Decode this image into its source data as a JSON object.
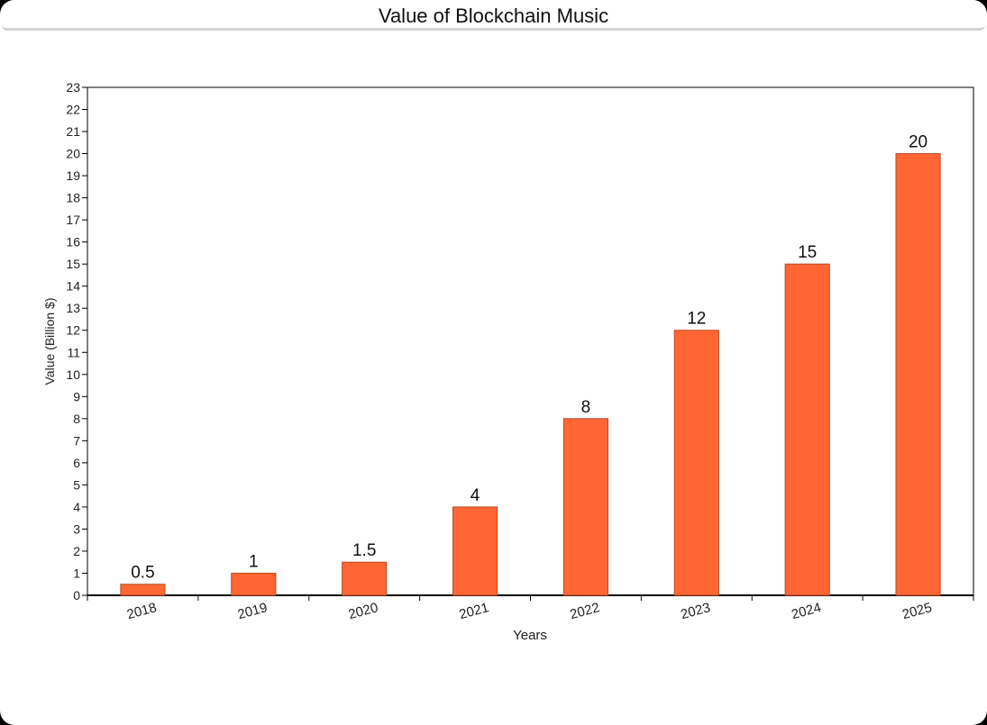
{
  "window": {
    "title": "Value of Blockchain Music"
  },
  "chart_data": {
    "type": "bar",
    "title": "Value of Blockchain Music",
    "xlabel": "Years",
    "ylabel": "Value (Billion $)",
    "categories": [
      "2018",
      "2019",
      "2020",
      "2021",
      "2022",
      "2023",
      "2024",
      "2025"
    ],
    "values": [
      0.5,
      1,
      1.5,
      4,
      8,
      12,
      15,
      20
    ],
    "data_labels": [
      "0.5",
      "1",
      "1.5",
      "4",
      "8",
      "12",
      "15",
      "20"
    ],
    "ylim": [
      0,
      23
    ],
    "ytick_step": 1,
    "grid": false,
    "bar_color": "#ff6633",
    "bar_edge_color": "#b84a24"
  }
}
